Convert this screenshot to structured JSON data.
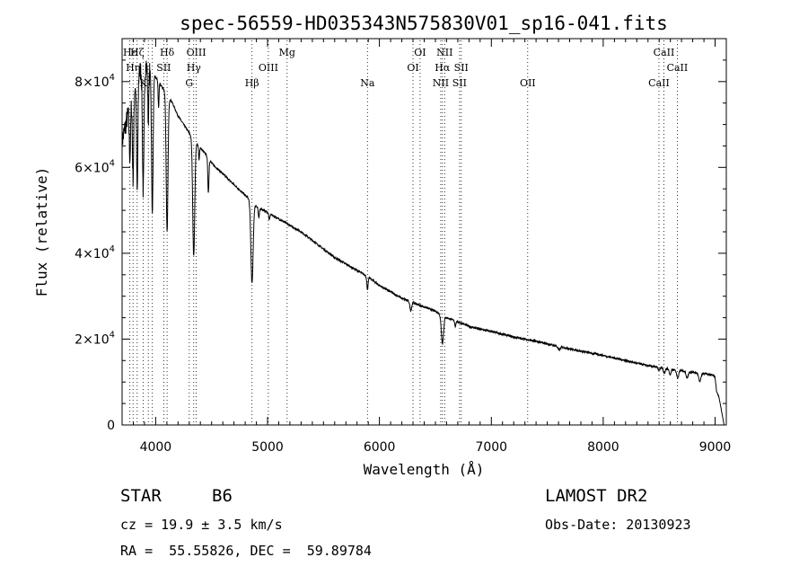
{
  "chart_data": {
    "type": "line",
    "title": "spec-56559-HD035343N575830V01_sp16-041.fits",
    "xlabel": "Wavelength (Å)",
    "ylabel": "Flux (relative)",
    "xlim": [
      3700,
      9100
    ],
    "ylim": [
      0,
      90000
    ],
    "x_ticks": [
      4000,
      5000,
      6000,
      7000,
      8000,
      9000
    ],
    "y_ticks": [
      {
        "value": 0,
        "mant": "0",
        "exp": ""
      },
      {
        "value": 20000,
        "mant": "2×10",
        "exp": "4"
      },
      {
        "value": 40000,
        "mant": "4×10",
        "exp": "4"
      },
      {
        "value": 60000,
        "mant": "6×10",
        "exp": "4"
      },
      {
        "value": 80000,
        "mant": "8×10",
        "exp": "4"
      }
    ],
    "continuum": [
      [
        3700,
        66000
      ],
      [
        3750,
        72000
      ],
      [
        3800,
        78000
      ],
      [
        3850,
        82000
      ],
      [
        3900,
        84000
      ],
      [
        3950,
        83000
      ],
      [
        4000,
        81000
      ],
      [
        4050,
        79000
      ],
      [
        4100,
        77000
      ],
      [
        4150,
        75000
      ],
      [
        4200,
        72000
      ],
      [
        4250,
        70000
      ],
      [
        4300,
        68000
      ],
      [
        4350,
        66000
      ],
      [
        4400,
        64500
      ],
      [
        4450,
        63000
      ],
      [
        4500,
        61000
      ],
      [
        4600,
        58500
      ],
      [
        4700,
        56000
      ],
      [
        4800,
        53500
      ],
      [
        4900,
        51000
      ],
      [
        5000,
        49500
      ],
      [
        5100,
        48000
      ],
      [
        5200,
        46500
      ],
      [
        5300,
        45000
      ],
      [
        5400,
        43000
      ],
      [
        5500,
        41000
      ],
      [
        5600,
        39000
      ],
      [
        5700,
        37500
      ],
      [
        5800,
        36000
      ],
      [
        5900,
        34500
      ],
      [
        6000,
        32500
      ],
      [
        6100,
        31000
      ],
      [
        6200,
        29500
      ],
      [
        6300,
        28500
      ],
      [
        6400,
        27500
      ],
      [
        6500,
        26500
      ],
      [
        6600,
        25000
      ],
      [
        6700,
        24000
      ],
      [
        6800,
        23000
      ],
      [
        6900,
        22300
      ],
      [
        7000,
        21800
      ],
      [
        7200,
        20500
      ],
      [
        7400,
        19500
      ],
      [
        7600,
        18300
      ],
      [
        7800,
        17200
      ],
      [
        8000,
        16200
      ],
      [
        8200,
        15000
      ],
      [
        8400,
        13800
      ],
      [
        8600,
        13000
      ],
      [
        8800,
        12300
      ],
      [
        8900,
        12000
      ],
      [
        9000,
        11500
      ]
    ],
    "absorption_lines": [
      {
        "center": 3770,
        "depth": 12000,
        "width": 6
      },
      {
        "center": 3798,
        "depth": 20000,
        "width": 6
      },
      {
        "center": 3835,
        "depth": 27000,
        "width": 6
      },
      {
        "center": 3889,
        "depth": 29000,
        "width": 7
      },
      {
        "center": 3934,
        "depth": 12000,
        "width": 5
      },
      {
        "center": 3970,
        "depth": 33000,
        "width": 7
      },
      {
        "center": 4026,
        "depth": 6000,
        "width": 4
      },
      {
        "center": 4102,
        "depth": 32000,
        "width": 8
      },
      {
        "center": 4340,
        "depth": 27000,
        "width": 9
      },
      {
        "center": 4388,
        "depth": 3000,
        "width": 4
      },
      {
        "center": 4471,
        "depth": 8000,
        "width": 5
      },
      {
        "center": 4861,
        "depth": 19000,
        "width": 10
      },
      {
        "center": 4922,
        "depth": 2500,
        "width": 5
      },
      {
        "center": 5016,
        "depth": 1500,
        "width": 5
      },
      {
        "center": 5893,
        "depth": 3000,
        "width": 6
      },
      {
        "center": 6280,
        "depth": 2000,
        "width": 8
      },
      {
        "center": 6563,
        "depth": 6500,
        "width": 10
      },
      {
        "center": 6678,
        "depth": 1200,
        "width": 5
      },
      {
        "center": 7605,
        "depth": 800,
        "width": 10
      },
      {
        "center": 8498,
        "depth": 700,
        "width": 8
      },
      {
        "center": 8545,
        "depth": 1200,
        "width": 8
      },
      {
        "center": 8598,
        "depth": 1200,
        "width": 8
      },
      {
        "center": 8665,
        "depth": 1800,
        "width": 9
      },
      {
        "center": 8750,
        "depth": 1500,
        "width": 9
      },
      {
        "center": 8863,
        "depth": 2000,
        "width": 10
      },
      {
        "center": 9015,
        "depth": 2000,
        "width": 10
      }
    ],
    "end_dropoff": 9000,
    "line_markers": [
      {
        "wavelength": 3770,
        "label": "Hε",
        "row": 1
      },
      {
        "wavelength": 3798,
        "label": "Hη",
        "row": 2
      },
      {
        "wavelength": 3835,
        "label": "Hζ",
        "row": 0
      },
      {
        "wavelength": 3889,
        "label": "K",
        "row": 3
      },
      {
        "wavelength": 3934,
        "label": "",
        "row": 0
      },
      {
        "wavelength": 3970,
        "label": "",
        "row": 0
      },
      {
        "wavelength": 4072,
        "label": "SII",
        "row": 2
      },
      {
        "wavelength": 4102,
        "label": "Hδ",
        "row": 0
      },
      {
        "wavelength": 4300,
        "label": "G",
        "row": 3
      },
      {
        "wavelength": 4340,
        "label": "Hγ",
        "row": 2
      },
      {
        "wavelength": 4363,
        "label": "OIII",
        "row": 0
      },
      {
        "wavelength": 4861,
        "label": "Hβ",
        "row": 3
      },
      {
        "wavelength": 5007,
        "label": "OIII",
        "row": 2
      },
      {
        "wavelength": 5175,
        "label": "Mg",
        "row": 0
      },
      {
        "wavelength": 5893,
        "label": "Na",
        "row": 3
      },
      {
        "wavelength": 6300,
        "label": "OI",
        "row": 2
      },
      {
        "wavelength": 6363,
        "label": "OI",
        "row": 0
      },
      {
        "wavelength": 6548,
        "label": "NII",
        "row": 3
      },
      {
        "wavelength": 6563,
        "label": "Hα",
        "row": 2
      },
      {
        "wavelength": 6583,
        "label": "NII",
        "row": 0
      },
      {
        "wavelength": 6716,
        "label": "SII",
        "row": 3
      },
      {
        "wavelength": 6731,
        "label": "SII",
        "row": 2
      },
      {
        "wavelength": 7325,
        "label": "OII",
        "row": 3
      },
      {
        "wavelength": 8498,
        "label": "CaII",
        "row": 3
      },
      {
        "wavelength": 8542,
        "label": "CaII",
        "row": 0
      },
      {
        "wavelength": 8662,
        "label": "CaII",
        "row": 2
      }
    ],
    "grid": false,
    "legend": "none"
  },
  "info": {
    "object_class": "STAR",
    "subclass": "B6",
    "survey": "LAMOST DR2",
    "velocity": "cz = 19.9 ± 3.5 km/s",
    "obs_date": "Obs-Date: 20130923",
    "coords": "RA =  55.55826, DEC =  59.89784"
  }
}
